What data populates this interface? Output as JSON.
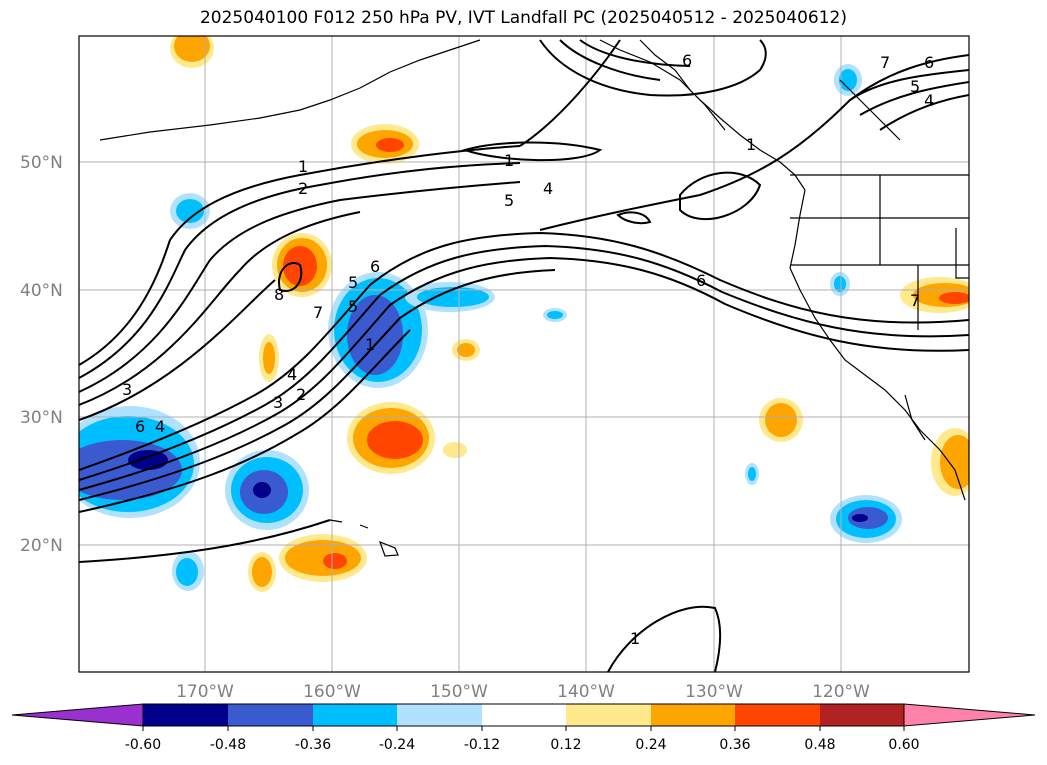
{
  "title": "2025040100 F012 250 hPa PV, IVT Landfall PC (2025040512 - 2025040612)",
  "lat_labels": [
    "50°N",
    "40°N",
    "30°N",
    "20°N"
  ],
  "lon_labels": [
    "170°W",
    "160°W",
    "150°W",
    "140°W",
    "130°W",
    "120°W"
  ],
  "contour_labels": [
    "1",
    "2",
    "3",
    "4",
    "5",
    "6",
    "7",
    "8",
    "1",
    "4",
    "5",
    "6",
    "7",
    "6",
    "5",
    "4",
    "6",
    "7",
    "1",
    "1",
    "2",
    "3",
    "4",
    "5",
    "6",
    "1"
  ],
  "colorbar": {
    "ticks": [
      "-0.60",
      "-0.48",
      "-0.36",
      "-0.24",
      "-0.12",
      "0.12",
      "0.24",
      "0.36",
      "0.48",
      "0.60"
    ],
    "colors": [
      "#9b30d0",
      "#00008b",
      "#3a5bd0",
      "#00bfff",
      "#b0e2ff",
      "#ffffff",
      "#ffe98c",
      "#ffa500",
      "#ff4500",
      "#b22222",
      "#ff82ab"
    ]
  }
}
